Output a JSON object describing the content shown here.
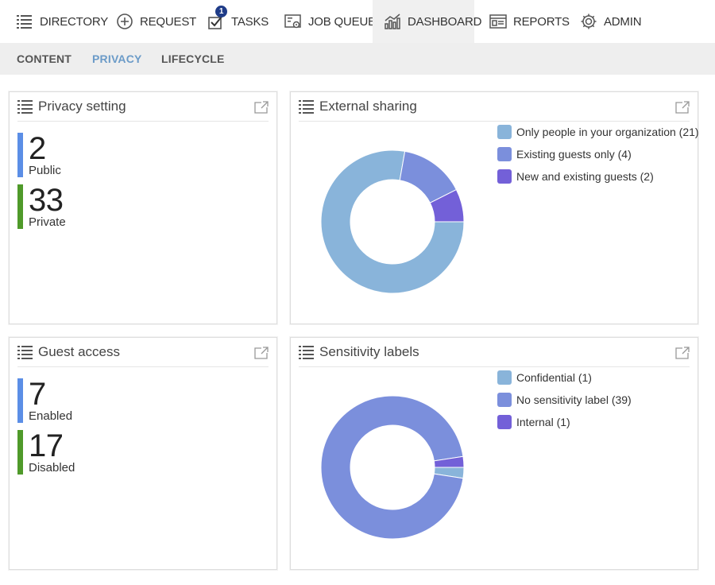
{
  "nav": {
    "items": [
      {
        "label": "DIRECTORY",
        "icon": "list-icon"
      },
      {
        "label": "REQUEST",
        "icon": "plus-circle-icon"
      },
      {
        "label": "TASKS",
        "icon": "checkbox-icon",
        "badge": "1"
      },
      {
        "label": "JOB QUEUE",
        "icon": "job-queue-icon"
      },
      {
        "label": "DASHBOARD",
        "icon": "chart-icon",
        "active": true
      },
      {
        "label": "REPORTS",
        "icon": "report-icon"
      },
      {
        "label": "ADMIN",
        "icon": "gear-icon"
      }
    ]
  },
  "subnav": {
    "items": [
      {
        "label": "CONTENT"
      },
      {
        "label": "PRIVACY",
        "active": true
      },
      {
        "label": "LIFECYCLE"
      }
    ]
  },
  "colors": {
    "blue_bar": "#5b8ee6",
    "green_bar": "#4f9a2a",
    "slice_light": "#89b4da",
    "slice_mid": "#7b8fdc",
    "slice_dark": "#7360d8",
    "accent": "#6b9bc8"
  },
  "privacy": {
    "title": "Privacy setting",
    "stats": [
      {
        "value": "2",
        "label": "Public"
      },
      {
        "value": "33",
        "label": "Private"
      }
    ]
  },
  "guest": {
    "title": "Guest access",
    "stats": [
      {
        "value": "7",
        "label": "Enabled"
      },
      {
        "value": "17",
        "label": "Disabled"
      }
    ]
  },
  "sharing": {
    "title": "External sharing",
    "legend": [
      "Only people in your organization (21)",
      "Existing guests only (4)",
      "New and existing guests (2)"
    ]
  },
  "sensitivity": {
    "title": "Sensitivity labels",
    "legend": [
      "Confidential (1)",
      "No sensitivity label (39)",
      "Internal (1)"
    ]
  },
  "chart_data": [
    {
      "type": "pie",
      "title": "External sharing",
      "categories": [
        "Only people in your organization",
        "Existing guests only",
        "New and existing guests"
      ],
      "values": [
        21,
        4,
        2
      ],
      "colors": [
        "#89b4da",
        "#7b8fdc",
        "#7360d8"
      ],
      "donut": true,
      "legend": "right"
    },
    {
      "type": "pie",
      "title": "Sensitivity labels",
      "categories": [
        "Confidential",
        "No sensitivity label",
        "Internal"
      ],
      "values": [
        1,
        39,
        1
      ],
      "colors": [
        "#89b4da",
        "#7b8fdc",
        "#7360d8"
      ],
      "donut": true,
      "legend": "right"
    }
  ]
}
